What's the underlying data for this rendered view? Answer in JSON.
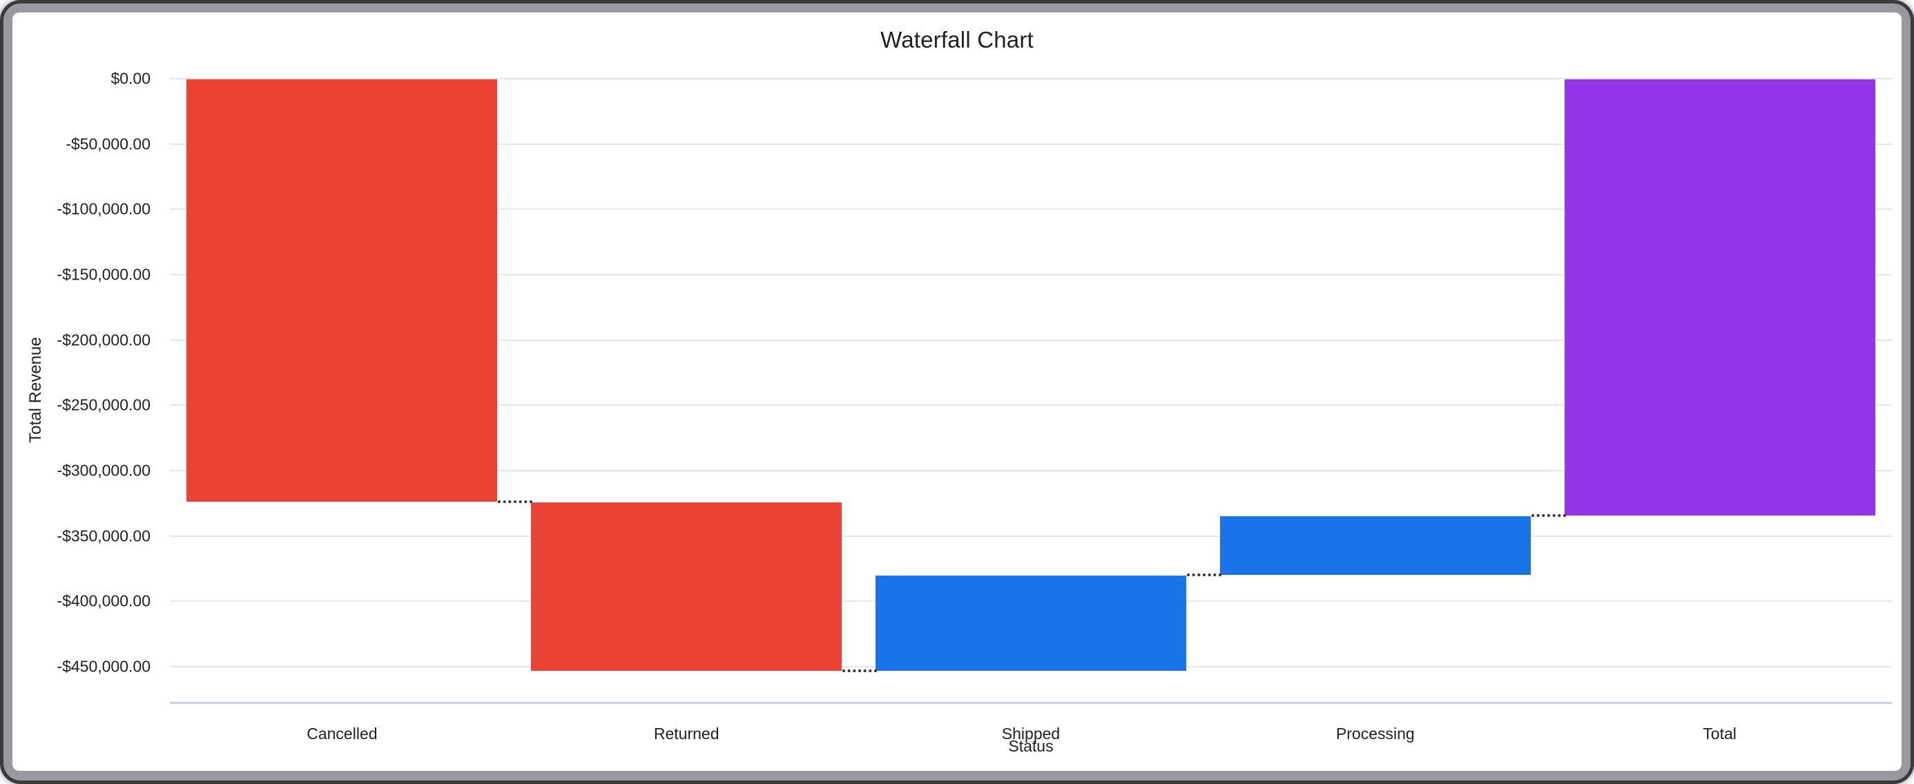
{
  "chart": {
    "title": "Waterfall Chart",
    "x_axis_title": "Status",
    "y_axis_title": "Total Revenue"
  },
  "chart_data": {
    "type": "waterfall",
    "title": "Waterfall Chart",
    "xlabel": "Status",
    "ylabel": "Total Revenue",
    "categories": [
      "Cancelled",
      "Returned",
      "Shipped",
      "Processing",
      "Total"
    ],
    "bars": [
      {
        "label": "Cancelled",
        "start": 0,
        "end": -323700,
        "delta": -323700,
        "color": "#ea4335",
        "kind": "decrease"
      },
      {
        "label": "Returned",
        "start": -323700,
        "end": -453400,
        "delta": -129700,
        "color": "#ea4335",
        "kind": "decrease"
      },
      {
        "label": "Shipped",
        "start": -453400,
        "end": -379700,
        "delta": 73700,
        "color": "#1a73e8",
        "kind": "increase"
      },
      {
        "label": "Processing",
        "start": -379700,
        "end": -334300,
        "delta": 45400,
        "color": "#1a73e8",
        "kind": "increase"
      },
      {
        "label": "Total",
        "start": 0,
        "end": -334300,
        "delta": -334300,
        "color": "#9334e6",
        "kind": "total"
      }
    ],
    "y_ticks": [
      {
        "value": 0,
        "label": "$0.00"
      },
      {
        "value": -50000,
        "label": "-$50,000.00"
      },
      {
        "value": -100000,
        "label": "-$100,000.00"
      },
      {
        "value": -150000,
        "label": "-$150,000.00"
      },
      {
        "value": -200000,
        "label": "-$200,000.00"
      },
      {
        "value": -250000,
        "label": "-$250,000.00"
      },
      {
        "value": -300000,
        "label": "-$300,000.00"
      },
      {
        "value": -350000,
        "label": "-$350,000.00"
      },
      {
        "value": -400000,
        "label": "-$400,000.00"
      },
      {
        "value": -450000,
        "label": "-$450,000.00"
      }
    ],
    "ylim": [
      0,
      -477000
    ],
    "grid": true,
    "legend_position": "none",
    "grid_color": "#e6e6e6",
    "baseline_color": "#c9d2e4",
    "connector_color": "#333333",
    "text_color": "#202124"
  }
}
